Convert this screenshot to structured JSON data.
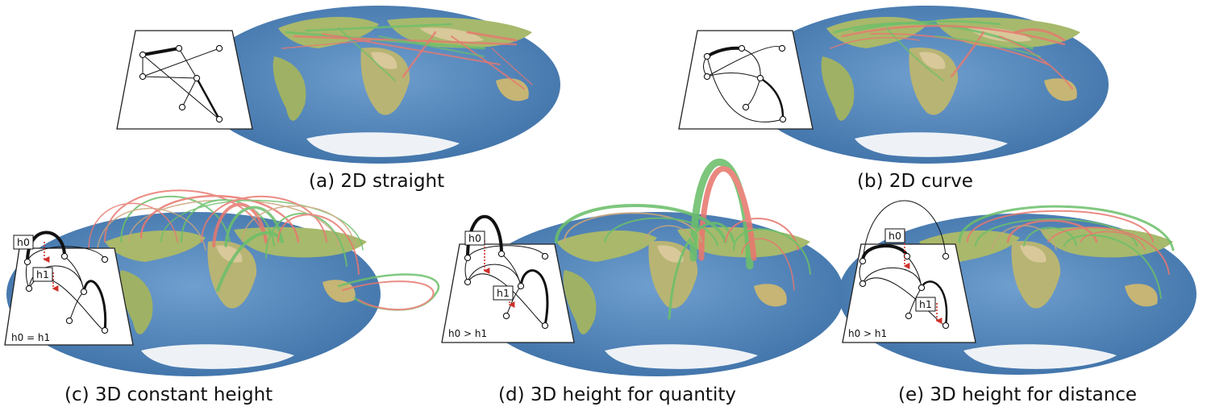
{
  "figure": {
    "panels": [
      {
        "id": "a",
        "caption": "(a) 2D straight",
        "inset_note": "",
        "labels": []
      },
      {
        "id": "b",
        "caption": "(b) 2D curve",
        "inset_note": "",
        "labels": []
      },
      {
        "id": "c",
        "caption": "(c) 3D constant height",
        "inset_note": "h0 = h1",
        "labels": [
          "h0",
          "h1"
        ]
      },
      {
        "id": "d",
        "caption": "(d) 3D height for quantity",
        "inset_note": "h0 > h1",
        "labels": [
          "h0",
          "h1"
        ]
      },
      {
        "id": "e",
        "caption": "(e) 3D height for distance",
        "inset_note": "h0 > h1",
        "labels": [
          "h0",
          "h1"
        ]
      }
    ],
    "colors": {
      "ocean": "#4a7fb5",
      "ocean_light": "#6a9ac8",
      "land": "#a9b86a",
      "desert": "#d8c89a",
      "ice": "#eef2f6",
      "flow_green": "#6cbf6a",
      "flow_red": "#e8786f",
      "flow_tan": "#c9a47a",
      "height_marker": "#d0302a"
    }
  }
}
